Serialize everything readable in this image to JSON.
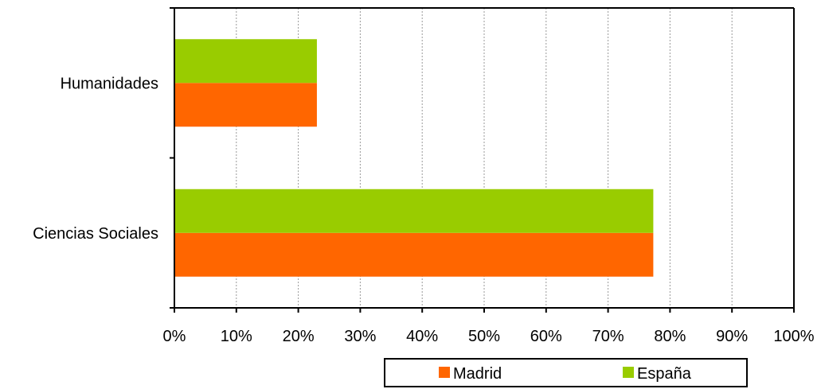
{
  "chart_data": {
    "type": "bar",
    "orientation": "horizontal",
    "categories": [
      "Humanidades",
      "Ciencias Sociales"
    ],
    "series": [
      {
        "name": "Madrid",
        "values": [
          23,
          77.3
        ]
      },
      {
        "name": "España",
        "values": [
          23,
          77.3
        ]
      }
    ],
    "xlim": [
      0,
      100
    ],
    "x_ticks": [
      "0%",
      "10%",
      "20%",
      "30%",
      "40%",
      "50%",
      "60%",
      "70%",
      "80%",
      "90%",
      "100%"
    ],
    "grid": "vertical dashed",
    "legend_position": "bottom",
    "colors": {
      "Madrid": "#ff6600",
      "España": "#99cc00"
    }
  }
}
